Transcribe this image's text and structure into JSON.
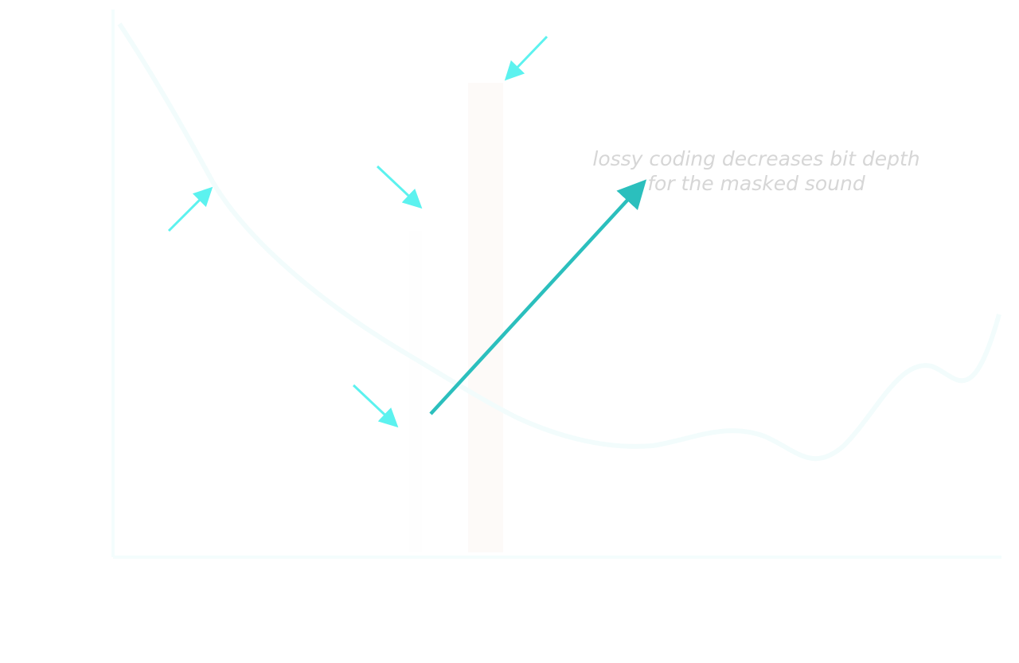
{
  "annotation": {
    "line1": "lossy coding decreases bit depth",
    "line2": "for the masked sound"
  },
  "colors": {
    "background": "#ffffff",
    "primary_arrow": "#2bbfbd",
    "pointer_arrows": "#5cf2ef",
    "masker_bar": "#fdfaf8",
    "faint_curve": "#f2fcfc",
    "faint_axis": "#f4fdfd",
    "annotation_text": "#d6d6d6"
  }
}
